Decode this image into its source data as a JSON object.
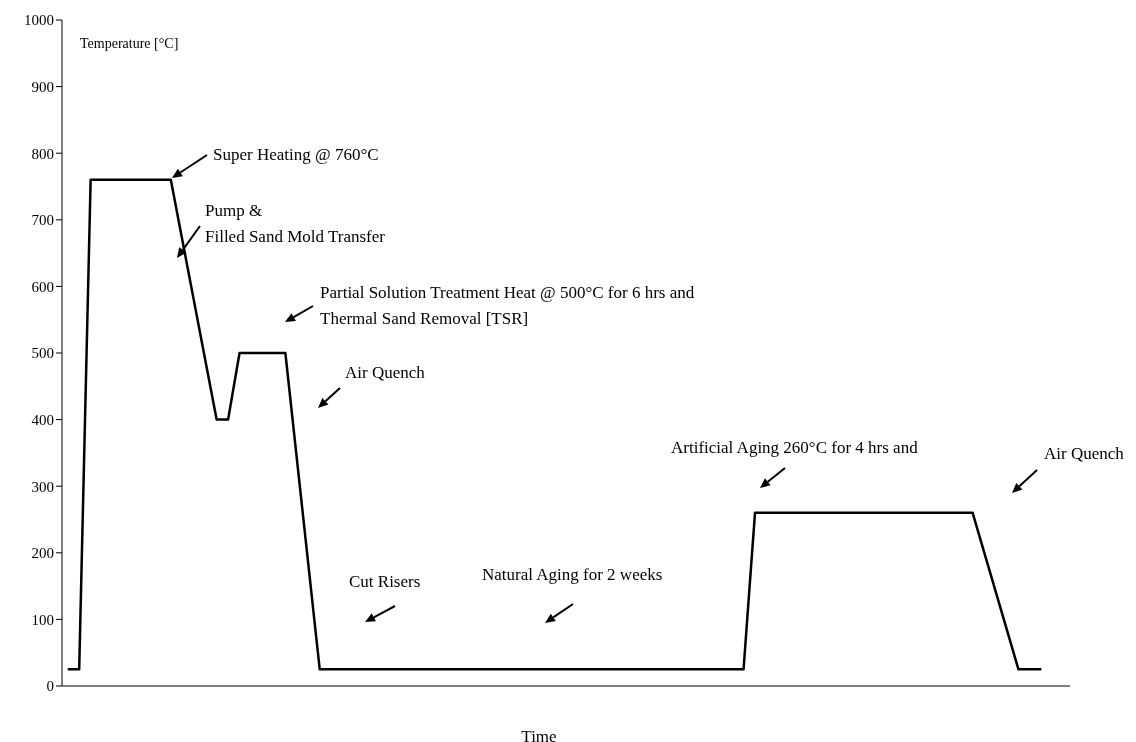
{
  "chart_data": {
    "type": "line",
    "xlabel": "Time",
    "ylabel": "Temperature [°C]",
    "categories": [
      null,
      null,
      null,
      null,
      null,
      null,
      null,
      null,
      null,
      null,
      null,
      null,
      null,
      null,
      null,
      null,
      null,
      null,
      null,
      null,
      null,
      null,
      null,
      null,
      null,
      null,
      null,
      null,
      null,
      null,
      null,
      null,
      null,
      null,
      null,
      null,
      null,
      null,
      null,
      null,
      null,
      null,
      null,
      null,
      null,
      null,
      null,
      null,
      null,
      null,
      null,
      null,
      null,
      null,
      null,
      null,
      null,
      null,
      null,
      null,
      null,
      null,
      null,
      null,
      null,
      null,
      null,
      null,
      null,
      null,
      null,
      null,
      null,
      null,
      null,
      null,
      null,
      null,
      null,
      null,
      null,
      null,
      null,
      null,
      null,
      null,
      null,
      null
    ],
    "series": [
      {
        "color": "#000000",
        "values": [
          25,
          25,
          760,
          null,
          null,
          null,
          null,
          null,
          null,
          760,
          null,
          null,
          null,
          400,
          400,
          500,
          null,
          null,
          null,
          500,
          null,
          null,
          25,
          null,
          null,
          null,
          null,
          null,
          null,
          null,
          null,
          null,
          null,
          null,
          null,
          null,
          null,
          null,
          null,
          null,
          null,
          null,
          null,
          null,
          null,
          null,
          null,
          null,
          null,
          null,
          null,
          null,
          null,
          null,
          null,
          null,
          null,
          null,
          null,
          25,
          260,
          null,
          null,
          null,
          null,
          null,
          null,
          null,
          null,
          null,
          null,
          null,
          null,
          null,
          null,
          null,
          null,
          null,
          null,
          260,
          null,
          null,
          null,
          25,
          null,
          25,
          null,
          null
        ]
      }
    ],
    "ylim": [
      0,
      1000
    ],
    "yticks": [
      0,
      100,
      200,
      300,
      400,
      500,
      600,
      700,
      800,
      900,
      1000
    ],
    "grid": false,
    "legend": false,
    "marker": "none",
    "line_style": "solid",
    "tick_labels": "y",
    "annotations": [
      "Super Heating @ 760°C",
      "Pump &\nFilled Sand Mold Transfer",
      "Partial Solution Treatment Heat @ 500°C for 6 hrs and\nThermal Sand Removal [TSR]",
      "Air Quench",
      "Cut Risers",
      "Natural Aging for 2 weeks",
      "Artificial Aging 260°C for 4 hrs and",
      "Air Quench"
    ]
  }
}
